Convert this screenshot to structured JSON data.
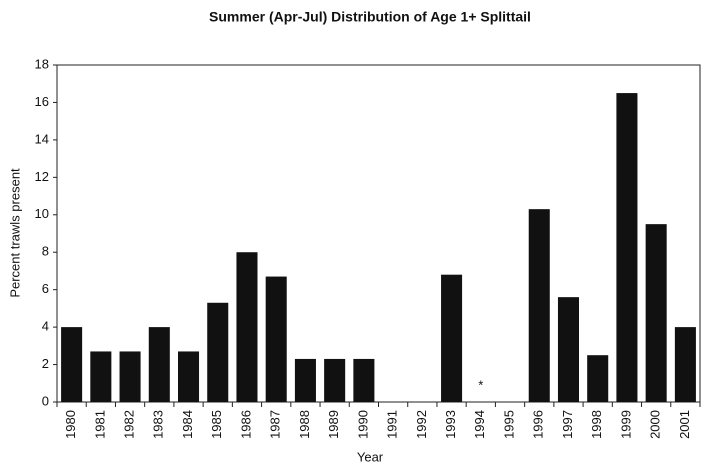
{
  "chart_data": {
    "type": "bar",
    "title": "Summer (Apr-Jul) Distribution of Age 1+ Splittail",
    "x_label": "Year",
    "y_label": "Percent trawls present",
    "categories": [
      "1980",
      "1981",
      "1982",
      "1983",
      "1984",
      "1985",
      "1986",
      "1987",
      "1988",
      "1989",
      "1990",
      "1991",
      "1992",
      "1993",
      "1994",
      "1995",
      "1996",
      "1997",
      "1998",
      "1999",
      "2000",
      "2001"
    ],
    "values": [
      4.0,
      2.7,
      2.7,
      4.0,
      2.7,
      5.3,
      8.0,
      6.7,
      2.3,
      2.3,
      2.3,
      0,
      0,
      6.8,
      0,
      0,
      10.3,
      5.6,
      2.5,
      16.5,
      9.5,
      4.0
    ],
    "color": "#111111",
    "ylim": [
      0,
      18
    ],
    "yticks": [
      0,
      2,
      4,
      6,
      8,
      10,
      12,
      14,
      16,
      18
    ],
    "grid": false,
    "annotations": [
      {
        "text": "*",
        "category": "1994"
      }
    ]
  }
}
